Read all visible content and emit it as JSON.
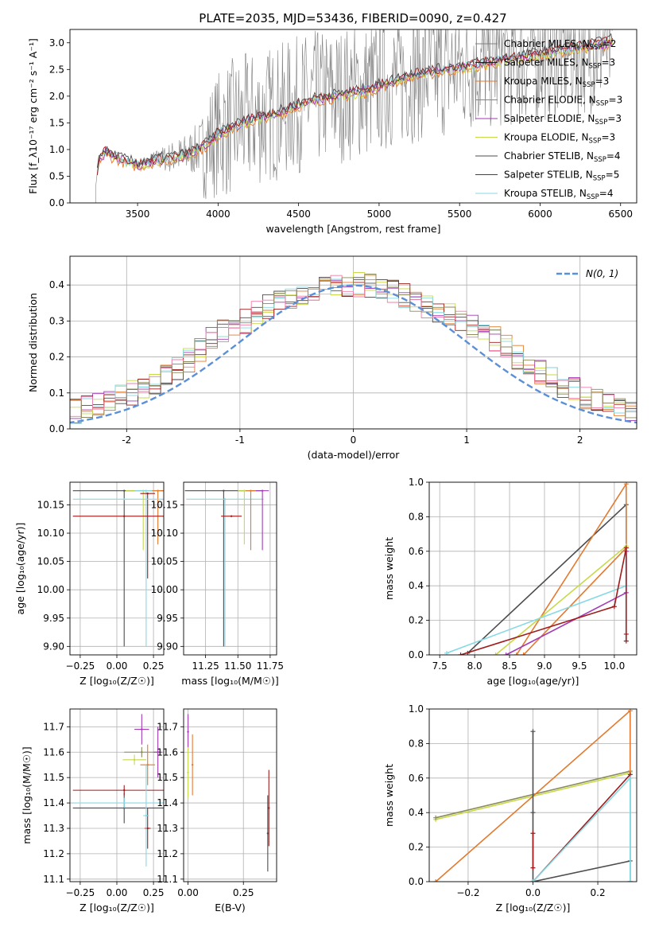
{
  "title": "PLATE=2035, MJD=53436, FIBERID=0090, z=0.427",
  "colors": {
    "chabrier_miles": "#808080",
    "salpeter_miles": "#222222",
    "kroupa_miles": "#e37a2f",
    "chabrier_elodie": "#8a8a5a",
    "salpeter_elodie": "#a23bb5",
    "kroupa_elodie": "#c8d94a",
    "chabrier_stelib": "#4d4d4d",
    "salpeter_stelib": "#a01b1b",
    "kroupa_stelib": "#86d9e3",
    "normal": "#5b8fd6",
    "grid": "#b0b0b0"
  },
  "chart_data": [
    {
      "type": "line",
      "xlabel": "wavelength [Angstrom, rest frame]",
      "ylabel": "Flux [f_λ10⁻¹⁷ erg cm⁻² s⁻¹ A⁻¹]",
      "xlim": [
        3080,
        6600
      ],
      "ylim": [
        0,
        3.25
      ],
      "xticks": [
        3500,
        4000,
        4500,
        5000,
        5500,
        6000,
        6500
      ],
      "yticks": [
        0.0,
        0.5,
        1.0,
        1.5,
        2.0,
        2.5,
        3.0
      ],
      "legend": "top-right",
      "legend_entries": [
        {
          "prefix": "Chabrier MILES, N",
          "n": "2"
        },
        {
          "prefix": "Salpeter MILES, N",
          "n": "3"
        },
        {
          "prefix": "Kroupa MILES, N",
          "n": "3"
        },
        {
          "prefix": "Chabrier ELODIE, N",
          "n": "3"
        },
        {
          "prefix": "Salpeter ELODIE, N",
          "n": "3"
        },
        {
          "prefix": "Kroupa ELODIE, N",
          "n": "3"
        },
        {
          "prefix": "Chabrier STELIB, N",
          "n": "4"
        },
        {
          "prefix": "Salpeter STELIB, N",
          "n": "5"
        },
        {
          "prefix": "Kroupa STELIB, N",
          "n": "4"
        }
      ],
      "legend_subscript": "SSP",
      "model_continuum": {
        "x": [
          3240,
          3260,
          3300,
          3400,
          3500,
          3600,
          3700,
          3800,
          3900,
          3950,
          4000,
          4100,
          4200,
          4300,
          4400,
          4500,
          4600,
          4700,
          4800,
          4900,
          5000,
          5100,
          5200,
          5300,
          5400,
          5500,
          5600,
          5700,
          5800,
          5900,
          6000,
          6100,
          6200,
          6300,
          6400,
          6450
        ],
        "y": [
          0.3,
          0.85,
          0.95,
          0.82,
          0.72,
          0.8,
          0.85,
          0.9,
          1.05,
          1.15,
          1.3,
          1.45,
          1.55,
          1.65,
          1.72,
          1.85,
          1.95,
          2.0,
          2.05,
          2.1,
          2.2,
          2.3,
          2.4,
          2.45,
          2.5,
          2.55,
          2.6,
          2.65,
          2.7,
          2.75,
          2.8,
          2.85,
          2.9,
          2.95,
          3.0,
          3.05
        ]
      },
      "observed_noise_start": 3500
    },
    {
      "type": "step",
      "xlabel": "(data-model)/error",
      "ylabel": "Normed distribution",
      "xlim": [
        -2.5,
        2.5
      ],
      "ylim": [
        0,
        0.48
      ],
      "xticks": [
        -2,
        -1,
        0,
        1,
        2
      ],
      "yticks": [
        0.0,
        0.1,
        0.2,
        0.3,
        0.4
      ],
      "legend": "top-right",
      "legend_label": "N(0, 1)",
      "bin_width": 0.1,
      "hist_base": [
        0.02,
        0.02,
        0.03,
        0.03,
        0.04,
        0.05,
        0.06,
        0.07,
        0.08,
        0.09,
        0.1,
        0.12,
        0.13,
        0.15,
        0.17,
        0.19,
        0.22,
        0.25,
        0.27,
        0.29,
        0.3,
        0.32,
        0.34,
        0.35,
        0.36,
        0.37,
        0.38,
        0.39,
        0.4,
        0.4,
        0.4,
        0.4,
        0.39,
        0.38,
        0.37,
        0.36,
        0.34,
        0.33,
        0.32,
        0.3,
        0.29,
        0.27,
        0.25,
        0.23,
        0.2,
        0.18,
        0.16,
        0.14,
        0.12,
        0.11,
        0.09,
        0.08,
        0.07,
        0.06,
        0.05,
        0.05,
        0.04,
        0.04,
        0.03,
        0.03
      ]
    },
    {
      "type": "scatter",
      "xlabel": "Z [log₁₀(Z/Z☉)]",
      "ylabel": "age [log₁₀(age/yr)]",
      "xlim": [
        -0.32,
        0.32
      ],
      "ylim": [
        9.885,
        10.19
      ],
      "xticks": [
        -0.25,
        0.0,
        0.25
      ],
      "xticklabels": [
        "−0.25",
        "0.00",
        "0.25"
      ],
      "yticks": [
        9.9,
        9.95,
        10.0,
        10.05,
        10.1,
        10.15
      ],
      "points": [
        {
          "x": 0.05,
          "y": 10.175,
          "xerr": 0.35,
          "ylo": 9.9,
          "model": "chabrier_stelib"
        },
        {
          "x": 0.18,
          "y": 10.175,
          "xerr": 0.12,
          "ylo": 10.07,
          "model": "kroupa_elodie"
        },
        {
          "x": 0.2,
          "y": 10.175,
          "xerr": 0.08,
          "ylo": 9.9,
          "model": "kroupa_stelib"
        },
        {
          "x": 0.28,
          "y": 10.175,
          "xerr": 0.04,
          "ylo": 10.08,
          "model": "kroupa_miles"
        },
        {
          "x": 0.21,
          "y": 10.17,
          "xerr": 0.05,
          "ylo": 10.02,
          "model": "salpeter_stelib"
        },
        {
          "x": 0.05,
          "y": 10.16,
          "xerr": 0.35,
          "ylo": 10.16,
          "model": "kroupa_stelib"
        },
        {
          "x": 0.05,
          "y": 10.13,
          "xerr": 0.35,
          "ylo": 10.13,
          "model": "salpeter_stelib"
        }
      ]
    },
    {
      "type": "scatter",
      "xlabel": "mass [log₁₀(M/M☉)]",
      "ylabel": "",
      "xlim": [
        11.08,
        11.8
      ],
      "ylim": [
        9.885,
        10.19
      ],
      "xticks": [
        11.25,
        11.5,
        11.75
      ],
      "xticklabels": [
        "11.25",
        "11.50",
        "11.75"
      ],
      "yticks": [
        9.9,
        9.95,
        10.0,
        10.05,
        10.1,
        10.15
      ],
      "points": [
        {
          "x": 11.39,
          "y": 10.175,
          "xerr": 0.3,
          "ylo": 9.9,
          "model": "chabrier_stelib"
        },
        {
          "x": 11.4,
          "y": 10.16,
          "xerr": 0.3,
          "ylo": 9.9,
          "model": "kroupa_stelib"
        },
        {
          "x": 11.45,
          "y": 10.13,
          "xerr": 0.08,
          "ylo": 10.13,
          "model": "salpeter_stelib"
        },
        {
          "x": 11.55,
          "y": 10.175,
          "xerr": 0.05,
          "ylo": 10.08,
          "model": "kroupa_elodie"
        },
        {
          "x": 11.6,
          "y": 10.175,
          "xerr": 0.04,
          "ylo": 10.07,
          "model": "kroupa_miles"
        },
        {
          "x": 11.69,
          "y": 10.175,
          "xerr": 0.05,
          "ylo": 10.07,
          "model": "salpeter_elodie"
        }
      ]
    },
    {
      "type": "line",
      "xlabel": "age [log₁₀(age/yr)]",
      "ylabel": "mass weight",
      "xlim": [
        7.35,
        10.32
      ],
      "ylim": [
        0,
        1.0
      ],
      "xticks": [
        7.5,
        8.0,
        8.5,
        9.0,
        9.5,
        10.0
      ],
      "xticklabels": [
        "7.5",
        "8.0",
        "8.5",
        "9.0",
        "9.5",
        "10.0"
      ],
      "yticks": [
        0.0,
        0.2,
        0.4,
        0.6,
        0.8,
        1.0
      ],
      "series": [
        {
          "model": "chabrier_stelib",
          "x": [
            7.9,
            10.17,
            10.17
          ],
          "y": [
            0.01,
            0.87,
            0.6
          ]
        },
        {
          "model": "kroupa_miles",
          "x": [
            8.6,
            10.17,
            10.17,
            8.7
          ],
          "y": [
            0.0,
            0.99,
            0.62,
            0.0
          ]
        },
        {
          "model": "kroupa_elodie",
          "x": [
            8.3,
            10.17,
            10.17
          ],
          "y": [
            0.0,
            0.63,
            0.6
          ]
        },
        {
          "model": "kroupa_stelib",
          "x": [
            7.6,
            10.17,
            10.17
          ],
          "y": [
            0.01,
            0.4,
            0.6
          ]
        },
        {
          "model": "salpeter_elodie",
          "x": [
            8.45,
            10.17,
            10.17
          ],
          "y": [
            0.0,
            0.36,
            0.6
          ]
        },
        {
          "model": "salpeter_stelib",
          "x": [
            7.8,
            10.0,
            10.17,
            10.17,
            10.17
          ],
          "y": [
            0.0,
            0.28,
            0.62,
            0.12,
            0.08
          ]
        }
      ]
    },
    {
      "type": "scatter",
      "xlabel": "Z [log₁₀(Z/Z☉)]",
      "ylabel": "mass [log₁₀(M/M☉)]",
      "xlim": [
        -0.32,
        0.32
      ],
      "ylim": [
        11.09,
        11.77
      ],
      "xticks": [
        -0.25,
        0.0,
        0.25
      ],
      "xticklabels": [
        "−0.25",
        "0.00",
        "0.25"
      ],
      "yticks": [
        11.1,
        11.2,
        11.3,
        11.4,
        11.5,
        11.6,
        11.7
      ],
      "points": [
        {
          "x": 0.05,
          "y": 11.38,
          "xerr": 0.35,
          "yerr": 0.06,
          "model": "chabrier_stelib"
        },
        {
          "x": 0.05,
          "y": 11.4,
          "xerr": 0.35,
          "yerr": 0.02,
          "model": "kroupa_stelib"
        },
        {
          "x": 0.05,
          "y": 11.45,
          "xerr": 0.35,
          "yerr": 0.02,
          "model": "salpeter_stelib"
        },
        {
          "x": 0.12,
          "y": 11.57,
          "xerr": 0.08,
          "yerr": 0.02,
          "model": "kroupa_elodie"
        },
        {
          "x": 0.17,
          "y": 11.6,
          "xerr": 0.12,
          "yerr": 0.02,
          "model": "chabrier_elodie"
        },
        {
          "x": 0.17,
          "y": 11.69,
          "xerr": 0.05,
          "yerr": 0.06,
          "model": "salpeter_elodie"
        },
        {
          "x": 0.21,
          "y": 11.55,
          "xerr": 0.05,
          "yerr": 0.08,
          "model": "kroupa_miles"
        },
        {
          "x": 0.21,
          "y": 11.3,
          "xerr": 0.02,
          "yerr": 0.08,
          "model": "salpeter_stelib"
        },
        {
          "x": 0.2,
          "y": 11.35,
          "xerr": 0.02,
          "yerr": 0.2,
          "model": "kroupa_stelib"
        },
        {
          "x": 0.28,
          "y": 11.6,
          "xerr": 0.03,
          "yerr": 0.1,
          "model": "salpeter_elodie"
        }
      ]
    },
    {
      "type": "scatter",
      "xlabel": "E(B-V)",
      "ylabel": "",
      "xlim": [
        -0.02,
        0.4
      ],
      "ylim": [
        11.09,
        11.77
      ],
      "xticks": [
        0.0,
        0.25
      ],
      "xticklabels": [
        "0.00",
        "0.25"
      ],
      "yticks": [
        11.1,
        11.2,
        11.3,
        11.4,
        11.5,
        11.6,
        11.7
      ],
      "points": [
        {
          "x": 0.0,
          "y": 11.68,
          "xerr": 0.0,
          "yerr": 0.07,
          "model": "salpeter_elodie"
        },
        {
          "x": 0.0,
          "y": 11.52,
          "xerr": 0.0,
          "yerr": 0.1,
          "model": "kroupa_elodie"
        },
        {
          "x": 0.02,
          "y": 11.55,
          "xerr": 0.0,
          "yerr": 0.12,
          "model": "kroupa_miles"
        },
        {
          "x": 0.365,
          "y": 11.38,
          "xerr": 0.0,
          "yerr": 0.15,
          "model": "salpeter_stelib"
        },
        {
          "x": 0.36,
          "y": 11.28,
          "xerr": 0.0,
          "yerr": 0.15,
          "model": "chabrier_stelib"
        }
      ]
    },
    {
      "type": "line",
      "xlabel": "Z [log₁₀(Z/Z☉)]",
      "ylabel": "mass weight",
      "xlim": [
        -0.32,
        0.32
      ],
      "ylim": [
        0,
        1.0
      ],
      "xticks": [
        -0.2,
        0.0,
        0.2
      ],
      "xticklabels": [
        "−0.2",
        "0.0",
        "0.2"
      ],
      "yticks": [
        0.0,
        0.2,
        0.4,
        0.6,
        0.8,
        1.0
      ],
      "series": [
        {
          "model": "kroupa_elodie",
          "x": [
            -0.3,
            0.3
          ],
          "y": [
            0.36,
            0.63
          ]
        },
        {
          "model": "chabrier_elodie",
          "x": [
            -0.3,
            0.3
          ],
          "y": [
            0.37,
            0.64
          ]
        },
        {
          "model": "kroupa_miles",
          "x": [
            -0.3,
            0.3,
            0.3
          ],
          "y": [
            0.0,
            0.99,
            0.0
          ]
        },
        {
          "model": "chabrier_stelib",
          "x": [
            0.0,
            0.0,
            0.0,
            0.3
          ],
          "y": [
            0.87,
            0.4,
            0.0,
            0.12
          ]
        },
        {
          "model": "salpeter_stelib",
          "x": [
            0.0,
            0.3,
            0.3
          ],
          "y": [
            0.0,
            0.62,
            0.0
          ]
        },
        {
          "model": "kroupa_stelib",
          "x": [
            0.0,
            0.3,
            0.3
          ],
          "y": [
            0.0,
            0.6,
            0.0
          ]
        },
        {
          "model": "salpeter_stelib",
          "x": [
            0.0,
            0.0
          ],
          "y": [
            0.28,
            0.08
          ]
        }
      ]
    }
  ]
}
